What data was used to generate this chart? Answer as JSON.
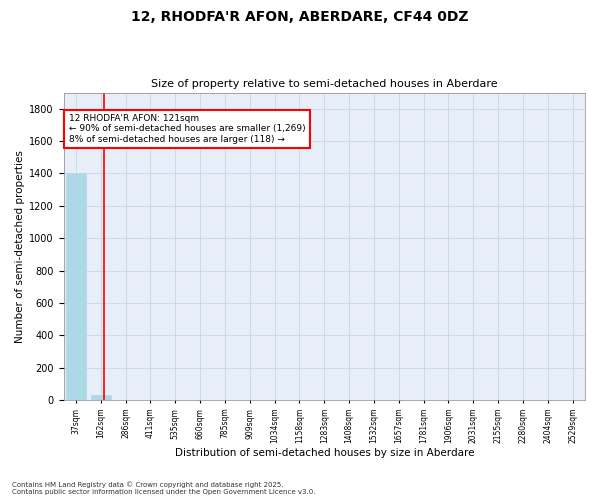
{
  "title1": "12, RHODFA'R AFON, ABERDARE, CF44 0DZ",
  "title2": "Size of property relative to semi-detached houses in Aberdare",
  "xlabel": "Distribution of semi-detached houses by size in Aberdare",
  "ylabel": "Number of semi-detached properties",
  "footer1": "Contains HM Land Registry data © Crown copyright and database right 2025.",
  "footer2": "Contains public sector information licensed under the Open Government Licence v3.0.",
  "annotation_line1": "12 RHODFA'R AFON: 121sqm",
  "annotation_line2": "← 90% of semi-detached houses are smaller (1,269)",
  "annotation_line3": "8% of semi-detached houses are larger (118) →",
  "bar_color": "#add8e6",
  "bar_edge_color": "#add8e6",
  "vline_color": "red",
  "annotation_box_color": "red",
  "annotation_bg": "white",
  "grid_color": "#c8d4e8",
  "background_color": "#e8eef8",
  "ylim": [
    0,
    1900
  ],
  "yticks": [
    0,
    200,
    400,
    600,
    800,
    1000,
    1200,
    1400,
    1600,
    1800
  ],
  "categories": [
    "37sqm",
    "162sqm",
    "286sqm",
    "411sqm",
    "535sqm",
    "660sqm",
    "785sqm",
    "909sqm",
    "1034sqm",
    "1158sqm",
    "1283sqm",
    "1408sqm",
    "1532sqm",
    "1657sqm",
    "1781sqm",
    "1906sqm",
    "2031sqm",
    "2155sqm",
    "2280sqm",
    "2404sqm",
    "2529sqm"
  ],
  "values": [
    1400,
    30,
    2,
    1,
    0,
    0,
    0,
    0,
    0,
    0,
    0,
    0,
    0,
    0,
    0,
    0,
    0,
    0,
    0,
    0,
    0
  ],
  "vline_index": 1.15
}
